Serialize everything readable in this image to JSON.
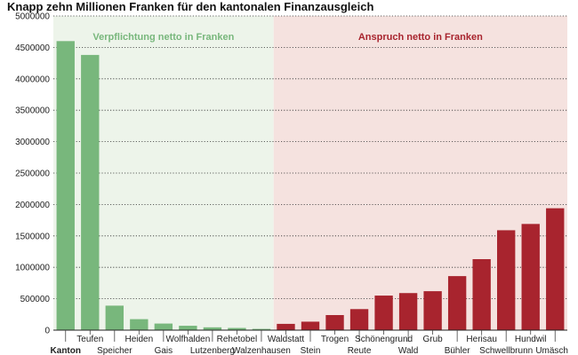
{
  "chart_data": {
    "type": "bar",
    "title": "Knapp zehn Millionen Franken für den kantonalen Finanzausgleich",
    "xlabel": "",
    "ylabel": "",
    "ylim": [
      0,
      5000000
    ],
    "yticks": [
      "0",
      "500000",
      "1000000",
      "1500000",
      "2000000",
      "2500000",
      "3000000",
      "3500000",
      "4000000",
      "4500000",
      "5000000"
    ],
    "grid": true,
    "categories": [
      "Kanton",
      "Teufen",
      "Speicher",
      "Heiden",
      "Gais",
      "Wolfhalden",
      "Lutzenberg",
      "Rehetobel",
      "Walzenhausen",
      "Waldstatt",
      "Stein",
      "Trogen",
      "Reute",
      "Schönengrund",
      "Wald",
      "Grub",
      "Bühler",
      "Herisau",
      "Schwellbrunn",
      "Hundwil",
      "Umäsch"
    ],
    "values": [
      4600000,
      4380000,
      390000,
      175000,
      105000,
      70000,
      45000,
      35000,
      20000,
      100000,
      135000,
      240000,
      335000,
      550000,
      590000,
      620000,
      860000,
      1130000,
      1590000,
      1690000,
      1940000
    ],
    "groups": [
      {
        "label": "Verpflichtung netto in Franken",
        "color": "#78b77c",
        "background": "#edf4ea",
        "count": 9
      },
      {
        "label": "Anspruch netto in Franken",
        "color": "#a8242e",
        "background": "#f5e2df",
        "count": 12
      }
    ]
  }
}
